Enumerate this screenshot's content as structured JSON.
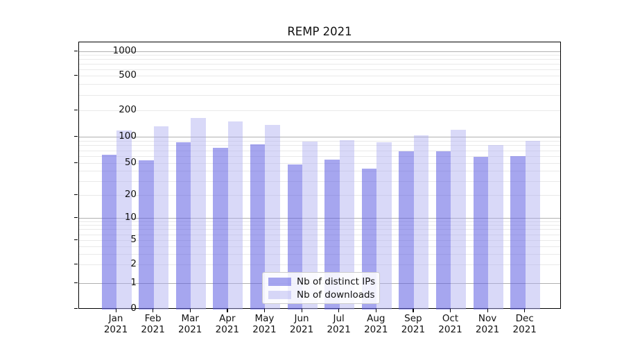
{
  "chart_data": {
    "type": "bar",
    "title": "REMP 2021",
    "categories": [
      "Jan",
      "Feb",
      "Mar",
      "Apr",
      "May",
      "Jun",
      "Jul",
      "Aug",
      "Sep",
      "Oct",
      "Nov",
      "Dec"
    ],
    "category_year": "2021",
    "series": [
      {
        "name": "Nb of distinct IPs",
        "color": "rgba(92,92,226,0.55)",
        "values": [
          62,
          54,
          87,
          75,
          82,
          48,
          55,
          43,
          68,
          68,
          59,
          60
        ]
      },
      {
        "name": "Nb of downloads",
        "color": "rgba(170,170,240,0.45)",
        "values": [
          118,
          132,
          164,
          149,
          137,
          88,
          92,
          87,
          103,
          119,
          81,
          90
        ]
      }
    ],
    "y_axis": {
      "scale": "symlog",
      "tick_values": [
        0,
        1,
        2,
        5,
        10,
        20,
        50,
        100,
        200,
        500,
        1000
      ],
      "ylim": [
        0,
        1300
      ]
    },
    "x_axis": {
      "tick_labels_two_lines": true
    },
    "legend": {
      "position": "lower-center"
    },
    "grid": true
  },
  "colors": {
    "major_grid": "#b0b0b0",
    "minor_grid": "#e9e9e9",
    "axis": "#000000",
    "background": "#ffffff"
  }
}
